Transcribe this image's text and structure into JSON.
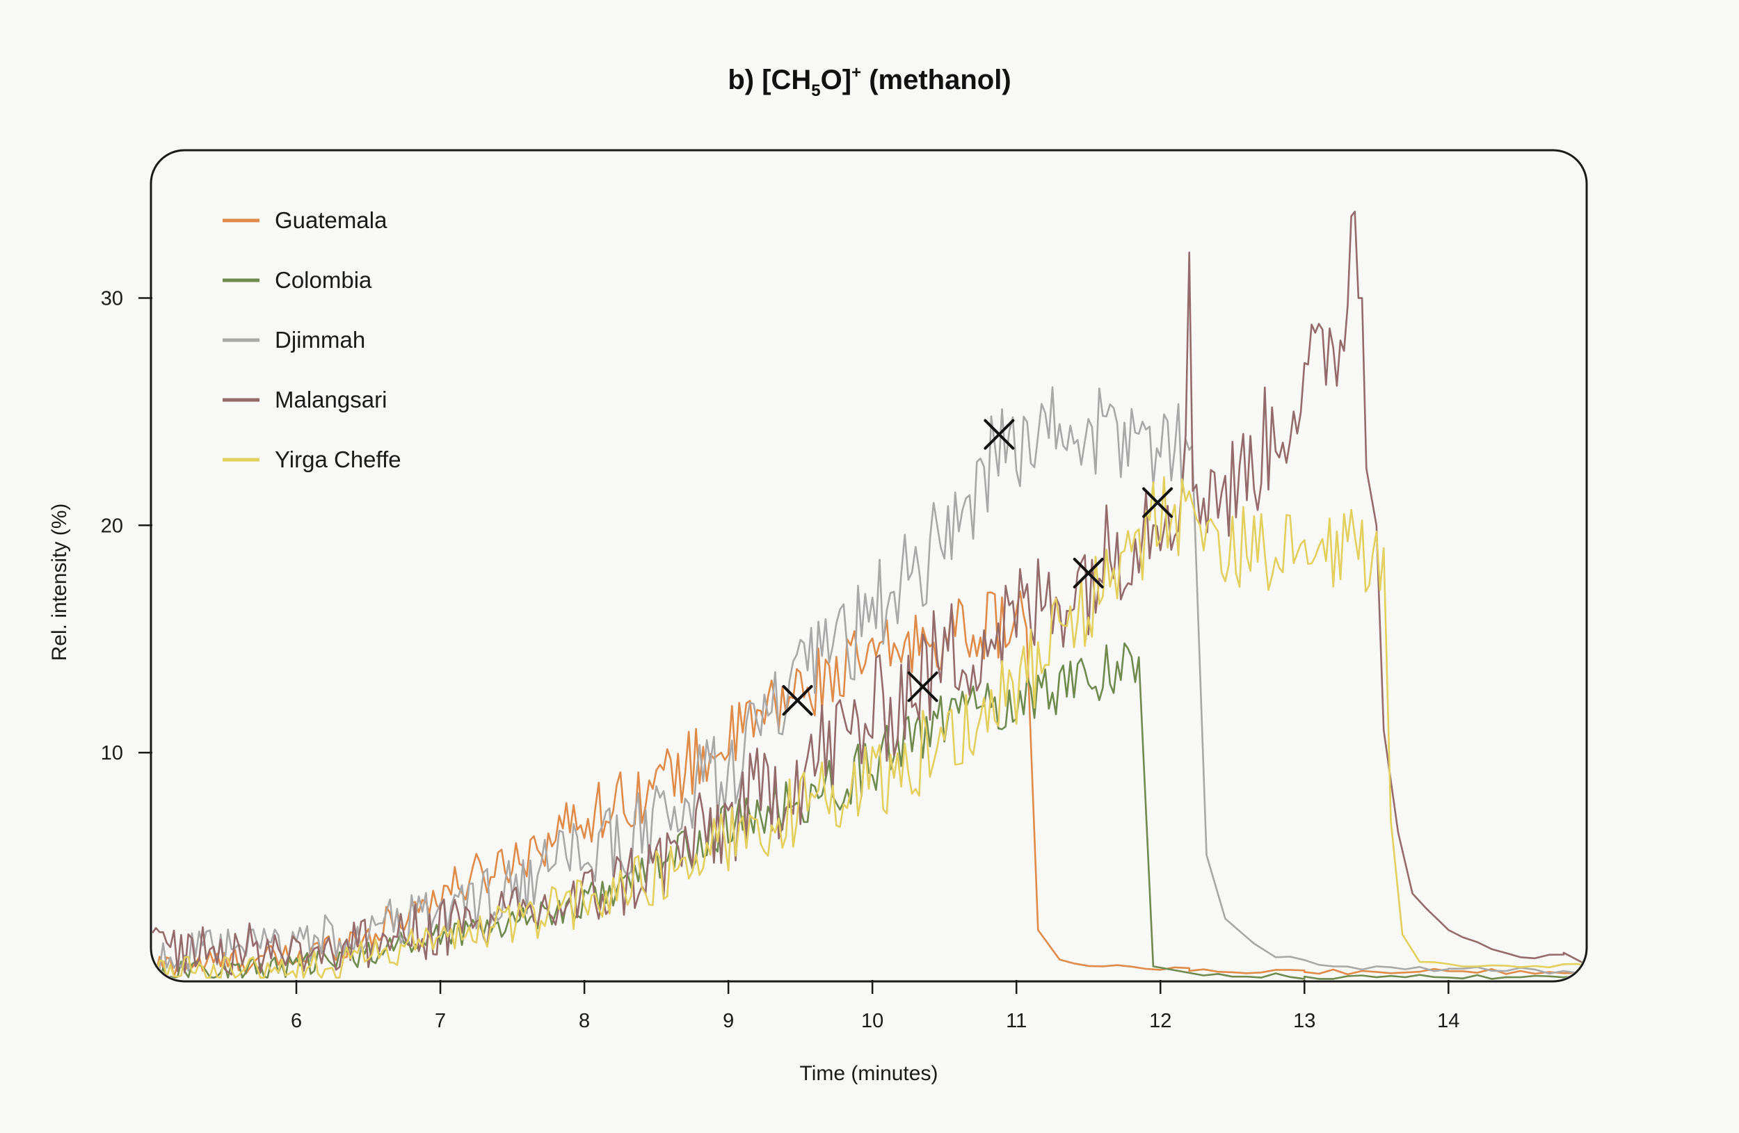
{
  "chart_data": {
    "type": "line",
    "title": {
      "prefix": "b) [CH",
      "sub": "5",
      "mid": "O]",
      "sup": "+",
      "suffix": " (methanol)"
    },
    "xlabel": "Time (minutes)",
    "ylabel": "Rel. intensity (%)",
    "xlim": [
      5.0,
      14.95
    ],
    "ylim": [
      0,
      36.5
    ],
    "x_ticks": [
      6,
      7,
      8,
      9,
      10,
      11,
      12,
      13,
      14
    ],
    "y_ticks": [
      10,
      20,
      30
    ],
    "grid": false,
    "legend_position": "top-left",
    "series": [
      {
        "name": "Guatemala",
        "color": "#e08a47",
        "profile": [
          [
            5.0,
            0.6
          ],
          [
            6.0,
            1.0
          ],
          [
            6.5,
            2.0
          ],
          [
            7.0,
            3.8
          ],
          [
            7.5,
            5.3
          ],
          [
            8.0,
            7.2
          ],
          [
            8.5,
            8.6
          ],
          [
            9.0,
            10.5
          ],
          [
            9.5,
            12.8
          ],
          [
            10.0,
            14.2
          ],
          [
            10.5,
            15.2
          ],
          [
            11.0,
            15.8
          ],
          [
            11.07,
            15.5
          ]
        ],
        "noise": 1.5,
        "dropoff": {
          "x": 11.07,
          "to": [
            [
              11.15,
              2.2
            ],
            [
              11.3,
              0.9
            ],
            [
              11.6,
              0.6
            ],
            [
              12.2,
              0.4
            ],
            [
              13.0,
              0.35
            ],
            [
              14.95,
              0.4
            ]
          ]
        }
      },
      {
        "name": "Colombia",
        "color": "#6e8a4c",
        "profile": [
          [
            5.0,
            0.3
          ],
          [
            6.0,
            0.6
          ],
          [
            6.5,
            1.2
          ],
          [
            7.0,
            2.0
          ],
          [
            7.5,
            2.6
          ],
          [
            8.0,
            3.4
          ],
          [
            8.5,
            5.0
          ],
          [
            9.0,
            6.8
          ],
          [
            9.5,
            7.8
          ],
          [
            10.0,
            9.5
          ],
          [
            10.5,
            11.5
          ],
          [
            11.0,
            12.3
          ],
          [
            11.5,
            13.4
          ],
          [
            11.85,
            14.2
          ]
        ],
        "noise": 1.3,
        "dropoff": {
          "x": 11.85,
          "to": [
            [
              11.95,
              0.6
            ],
            [
              12.3,
              0.2
            ],
            [
              13.0,
              0.15
            ],
            [
              14.95,
              0.1
            ]
          ]
        }
      },
      {
        "name": "Djimmah",
        "color": "#a8a8a8",
        "profile": [
          [
            5.0,
            1.0
          ],
          [
            6.0,
            1.6
          ],
          [
            6.5,
            2.2
          ],
          [
            7.0,
            3.0
          ],
          [
            7.5,
            4.0
          ],
          [
            8.0,
            5.6
          ],
          [
            8.5,
            6.8
          ],
          [
            9.0,
            9.5
          ],
          [
            9.5,
            13.0
          ],
          [
            10.0,
            16.0
          ],
          [
            10.5,
            19.5
          ],
          [
            10.9,
            23.5
          ],
          [
            11.3,
            24.2
          ],
          [
            11.8,
            23.8
          ],
          [
            12.2,
            23.5
          ]
        ],
        "noise": 2.2,
        "dropoff": {
          "x": 12.22,
          "to": [
            [
              12.32,
              5.5
            ],
            [
              12.45,
              2.7
            ],
            [
              12.8,
              1.0
            ],
            [
              13.2,
              0.6
            ],
            [
              14.0,
              0.5
            ],
            [
              14.95,
              0.35
            ]
          ]
        }
      },
      {
        "name": "Malangsari",
        "color": "#946a6a",
        "profile": [
          [
            5.0,
            1.5
          ],
          [
            6.0,
            1.3
          ],
          [
            6.5,
            1.6
          ],
          [
            7.0,
            2.3
          ],
          [
            7.5,
            2.7
          ],
          [
            8.0,
            3.5
          ],
          [
            8.5,
            5.0
          ],
          [
            9.0,
            7.0
          ],
          [
            9.5,
            9.3
          ],
          [
            10.0,
            11.5
          ],
          [
            10.5,
            14.2
          ],
          [
            11.0,
            15.8
          ],
          [
            11.5,
            17.8
          ],
          [
            12.0,
            21.0
          ],
          [
            12.2,
            22.0
          ],
          [
            12.5,
            21.5
          ],
          [
            13.0,
            26.0
          ],
          [
            13.4,
            30.0
          ]
        ],
        "noise": 2.6,
        "spikes": [
          [
            12.19,
            32.0
          ],
          [
            13.32,
            33.6
          ],
          [
            13.36,
            33.8
          ]
        ],
        "dropoff": {
          "x": 13.4,
          "to": [
            [
              13.43,
              22.5
            ],
            [
              13.5,
              20.0
            ],
            [
              13.55,
              11.0
            ],
            [
              13.65,
              6.5
            ],
            [
              13.75,
              3.8
            ],
            [
              14.0,
              2.2
            ],
            [
              14.5,
              1.0
            ],
            [
              14.8,
              1.2
            ],
            [
              14.95,
              0.7
            ]
          ]
        }
      },
      {
        "name": "Yirga Cheffe",
        "color": "#e3cf5c",
        "profile": [
          [
            5.0,
            0.3
          ],
          [
            6.0,
            0.5
          ],
          [
            6.5,
            1.0
          ],
          [
            7.0,
            1.8
          ],
          [
            7.5,
            2.5
          ],
          [
            8.0,
            3.5
          ],
          [
            8.5,
            4.6
          ],
          [
            9.0,
            6.2
          ],
          [
            9.5,
            7.5
          ],
          [
            10.0,
            8.8
          ],
          [
            10.5,
            10.5
          ],
          [
            11.0,
            13.0
          ],
          [
            11.5,
            16.5
          ],
          [
            12.0,
            20.5
          ],
          [
            12.2,
            20.5
          ],
          [
            12.5,
            19.0
          ],
          [
            13.0,
            18.5
          ],
          [
            13.5,
            19.0
          ],
          [
            13.55,
            19.0
          ]
        ],
        "noise": 1.9,
        "dropoff": {
          "x": 13.55,
          "to": [
            [
              13.6,
              7.0
            ],
            [
              13.68,
              2.0
            ],
            [
              13.8,
              0.8
            ],
            [
              14.2,
              0.6
            ],
            [
              14.95,
              0.6
            ]
          ]
        }
      }
    ],
    "markers": [
      {
        "x": 10.88,
        "y": 24.0
      },
      {
        "x": 9.48,
        "y": 12.3
      },
      {
        "x": 10.35,
        "y": 12.9
      },
      {
        "x": 11.5,
        "y": 17.9
      },
      {
        "x": 11.98,
        "y": 21.0
      }
    ]
  }
}
